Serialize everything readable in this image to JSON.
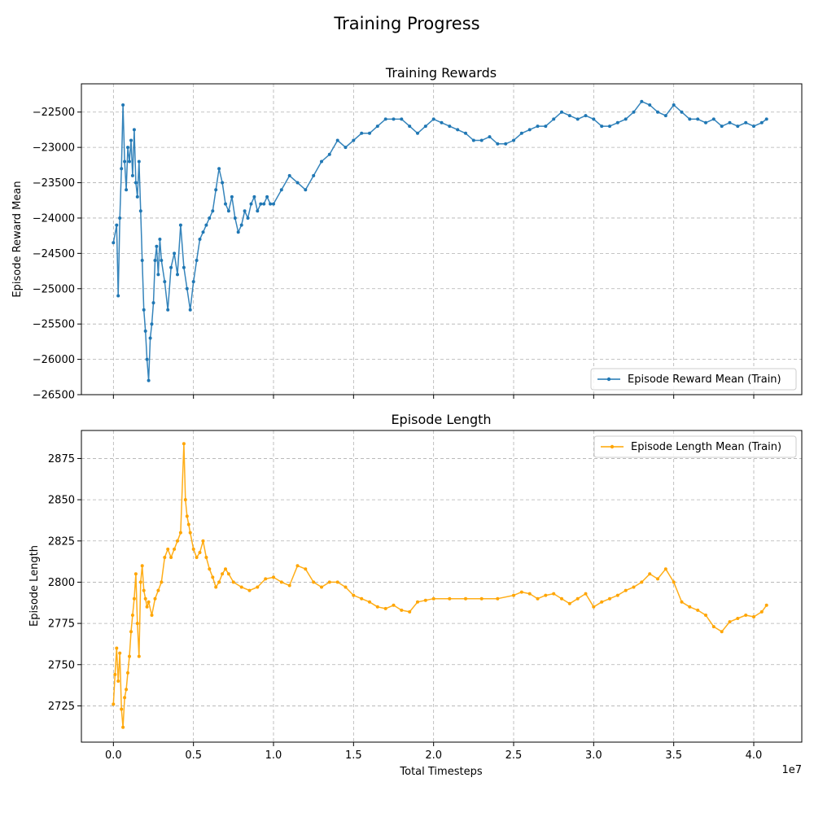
{
  "figure": {
    "suptitle": "Training Progress"
  },
  "chart_data": [
    {
      "type": "line",
      "title": "Training Rewards",
      "xlabel": "",
      "ylabel": "Episode Reward Mean",
      "xlim": [
        -2000000,
        43000000
      ],
      "ylim": [
        -26500,
        -22100
      ],
      "yticks": [
        -26500,
        -26000,
        -25500,
        -25000,
        -24500,
        -24000,
        -23500,
        -23000,
        -22500
      ],
      "ytick_labels": [
        "−26500",
        "−26000",
        "−25500",
        "−25000",
        "−24500",
        "−24000",
        "−23500",
        "−23000",
        "−22500"
      ],
      "xticks": [
        0,
        5000000,
        10000000,
        15000000,
        20000000,
        25000000,
        30000000,
        35000000,
        40000000
      ],
      "show_xtick_labels": false,
      "grid": true,
      "legend": {
        "placement": "lower-right",
        "entries": [
          "Episode Reward Mean (Train)"
        ]
      },
      "series": [
        {
          "name": "Episode Reward Mean (Train)",
          "color": "#1f77b4",
          "marker": "dot",
          "points": [
            [
              0,
              -24350
            ],
            [
              200000,
              -24100
            ],
            [
              300000,
              -25100
            ],
            [
              400000,
              -24000
            ],
            [
              500000,
              -23300
            ],
            [
              600000,
              -22400
            ],
            [
              700000,
              -23200
            ],
            [
              800000,
              -23600
            ],
            [
              900000,
              -23000
            ],
            [
              1000000,
              -23200
            ],
            [
              1100000,
              -22900
            ],
            [
              1200000,
              -23400
            ],
            [
              1300000,
              -22750
            ],
            [
              1400000,
              -23500
            ],
            [
              1500000,
              -23700
            ],
            [
              1600000,
              -23200
            ],
            [
              1700000,
              -23900
            ],
            [
              1800000,
              -24600
            ],
            [
              1900000,
              -25300
            ],
            [
              2000000,
              -25600
            ],
            [
              2100000,
              -26000
            ],
            [
              2200000,
              -26300
            ],
            [
              2300000,
              -25700
            ],
            [
              2400000,
              -25500
            ],
            [
              2500000,
              -25200
            ],
            [
              2600000,
              -24600
            ],
            [
              2700000,
              -24400
            ],
            [
              2800000,
              -24800
            ],
            [
              2900000,
              -24300
            ],
            [
              3000000,
              -24600
            ],
            [
              3200000,
              -24900
            ],
            [
              3400000,
              -25300
            ],
            [
              3600000,
              -24700
            ],
            [
              3800000,
              -24500
            ],
            [
              4000000,
              -24800
            ],
            [
              4200000,
              -24100
            ],
            [
              4400000,
              -24700
            ],
            [
              4600000,
              -25000
            ],
            [
              4800000,
              -25300
            ],
            [
              5000000,
              -24900
            ],
            [
              5200000,
              -24600
            ],
            [
              5400000,
              -24300
            ],
            [
              5600000,
              -24200
            ],
            [
              5800000,
              -24100
            ],
            [
              6000000,
              -24000
            ],
            [
              6200000,
              -23900
            ],
            [
              6400000,
              -23600
            ],
            [
              6600000,
              -23300
            ],
            [
              6800000,
              -23500
            ],
            [
              7000000,
              -23800
            ],
            [
              7200000,
              -23900
            ],
            [
              7400000,
              -23700
            ],
            [
              7600000,
              -24000
            ],
            [
              7800000,
              -24200
            ],
            [
              8000000,
              -24100
            ],
            [
              8200000,
              -23900
            ],
            [
              8400000,
              -24000
            ],
            [
              8600000,
              -23800
            ],
            [
              8800000,
              -23700
            ],
            [
              9000000,
              -23900
            ],
            [
              9200000,
              -23800
            ],
            [
              9400000,
              -23800
            ],
            [
              9600000,
              -23700
            ],
            [
              9800000,
              -23800
            ],
            [
              10000000,
              -23800
            ],
            [
              10500000,
              -23600
            ],
            [
              11000000,
              -23400
            ],
            [
              11500000,
              -23500
            ],
            [
              12000000,
              -23600
            ],
            [
              12500000,
              -23400
            ],
            [
              13000000,
              -23200
            ],
            [
              13500000,
              -23100
            ],
            [
              14000000,
              -22900
            ],
            [
              14500000,
              -23000
            ],
            [
              15000000,
              -22900
            ],
            [
              15500000,
              -22800
            ],
            [
              16000000,
              -22800
            ],
            [
              16500000,
              -22700
            ],
            [
              17000000,
              -22600
            ],
            [
              17500000,
              -22600
            ],
            [
              18000000,
              -22600
            ],
            [
              18500000,
              -22700
            ],
            [
              19000000,
              -22800
            ],
            [
              19500000,
              -22700
            ],
            [
              20000000,
              -22600
            ],
            [
              20500000,
              -22650
            ],
            [
              21000000,
              -22700
            ],
            [
              21500000,
              -22750
            ],
            [
              22000000,
              -22800
            ],
            [
              22500000,
              -22900
            ],
            [
              23000000,
              -22900
            ],
            [
              23500000,
              -22850
            ],
            [
              24000000,
              -22950
            ],
            [
              24500000,
              -22950
            ],
            [
              25000000,
              -22900
            ],
            [
              25500000,
              -22800
            ],
            [
              26000000,
              -22750
            ],
            [
              26500000,
              -22700
            ],
            [
              27000000,
              -22700
            ],
            [
              27500000,
              -22600
            ],
            [
              28000000,
              -22500
            ],
            [
              28500000,
              -22550
            ],
            [
              29000000,
              -22600
            ],
            [
              29500000,
              -22550
            ],
            [
              30000000,
              -22600
            ],
            [
              30500000,
              -22700
            ],
            [
              31000000,
              -22700
            ],
            [
              31500000,
              -22650
            ],
            [
              32000000,
              -22600
            ],
            [
              32500000,
              -22500
            ],
            [
              33000000,
              -22350
            ],
            [
              33500000,
              -22400
            ],
            [
              34000000,
              -22500
            ],
            [
              34500000,
              -22550
            ],
            [
              35000000,
              -22400
            ],
            [
              35500000,
              -22500
            ],
            [
              36000000,
              -22600
            ],
            [
              36500000,
              -22600
            ],
            [
              37000000,
              -22650
            ],
            [
              37500000,
              -22600
            ],
            [
              38000000,
              -22700
            ],
            [
              38500000,
              -22650
            ],
            [
              39000000,
              -22700
            ],
            [
              39500000,
              -22650
            ],
            [
              40000000,
              -22700
            ],
            [
              40500000,
              -22650
            ],
            [
              40800000,
              -22600
            ]
          ]
        }
      ]
    },
    {
      "type": "line",
      "title": "Episode Length",
      "xlabel": "Total Timesteps",
      "ylabel": "Episode Length",
      "x_offset_label": "1e7",
      "xlim": [
        -2000000,
        43000000
      ],
      "ylim": [
        2703,
        2892
      ],
      "yticks": [
        2725,
        2750,
        2775,
        2800,
        2825,
        2850,
        2875
      ],
      "ytick_labels": [
        "2725",
        "2750",
        "2775",
        "2800",
        "2825",
        "2850",
        "2875"
      ],
      "xticks": [
        0,
        5000000,
        10000000,
        15000000,
        20000000,
        25000000,
        30000000,
        35000000,
        40000000
      ],
      "xtick_labels": [
        "0.0",
        "0.5",
        "1.0",
        "1.5",
        "2.0",
        "2.5",
        "3.0",
        "3.5",
        "4.0"
      ],
      "show_xtick_labels": true,
      "grid": true,
      "legend": {
        "placement": "upper-right",
        "entries": [
          "Episode Length Mean (Train)"
        ]
      },
      "series": [
        {
          "name": "Episode Length Mean (Train)",
          "color": "#ffa500",
          "marker": "dot",
          "points": [
            [
              0,
              2726
            ],
            [
              100000,
              2744
            ],
            [
              200000,
              2760
            ],
            [
              300000,
              2740
            ],
            [
              400000,
              2757
            ],
            [
              500000,
              2723
            ],
            [
              600000,
              2712
            ],
            [
              700000,
              2730
            ],
            [
              800000,
              2735
            ],
            [
              900000,
              2745
            ],
            [
              1000000,
              2755
            ],
            [
              1100000,
              2770
            ],
            [
              1200000,
              2780
            ],
            [
              1300000,
              2790
            ],
            [
              1400000,
              2805
            ],
            [
              1500000,
              2775
            ],
            [
              1600000,
              2755
            ],
            [
              1700000,
              2800
            ],
            [
              1800000,
              2810
            ],
            [
              1900000,
              2795
            ],
            [
              2000000,
              2790
            ],
            [
              2100000,
              2785
            ],
            [
              2200000,
              2788
            ],
            [
              2400000,
              2780
            ],
            [
              2600000,
              2790
            ],
            [
              2800000,
              2795
            ],
            [
              3000000,
              2800
            ],
            [
              3200000,
              2815
            ],
            [
              3400000,
              2820
            ],
            [
              3600000,
              2815
            ],
            [
              3800000,
              2820
            ],
            [
              4000000,
              2825
            ],
            [
              4200000,
              2830
            ],
            [
              4400000,
              2884
            ],
            [
              4500000,
              2850
            ],
            [
              4600000,
              2840
            ],
            [
              4700000,
              2835
            ],
            [
              4800000,
              2830
            ],
            [
              5000000,
              2820
            ],
            [
              5200000,
              2815
            ],
            [
              5400000,
              2818
            ],
            [
              5600000,
              2825
            ],
            [
              5800000,
              2815
            ],
            [
              6000000,
              2808
            ],
            [
              6200000,
              2803
            ],
            [
              6400000,
              2797
            ],
            [
              6600000,
              2800
            ],
            [
              6800000,
              2805
            ],
            [
              7000000,
              2808
            ],
            [
              7200000,
              2805
            ],
            [
              7500000,
              2800
            ],
            [
              8000000,
              2797
            ],
            [
              8500000,
              2795
            ],
            [
              9000000,
              2797
            ],
            [
              9500000,
              2802
            ],
            [
              10000000,
              2803
            ],
            [
              10500000,
              2800
            ],
            [
              11000000,
              2798
            ],
            [
              11500000,
              2810
            ],
            [
              12000000,
              2808
            ],
            [
              12500000,
              2800
            ],
            [
              13000000,
              2797
            ],
            [
              13500000,
              2800
            ],
            [
              14000000,
              2800
            ],
            [
              14500000,
              2797
            ],
            [
              15000000,
              2792
            ],
            [
              15500000,
              2790
            ],
            [
              16000000,
              2788
            ],
            [
              16500000,
              2785
            ],
            [
              17000000,
              2784
            ],
            [
              17500000,
              2786
            ],
            [
              18000000,
              2783
            ],
            [
              18500000,
              2782
            ],
            [
              19000000,
              2788
            ],
            [
              19500000,
              2789
            ],
            [
              20000000,
              2790
            ],
            [
              21000000,
              2790
            ],
            [
              22000000,
              2790
            ],
            [
              23000000,
              2790
            ],
            [
              24000000,
              2790
            ],
            [
              25000000,
              2792
            ],
            [
              25500000,
              2794
            ],
            [
              26000000,
              2793
            ],
            [
              26500000,
              2790
            ],
            [
              27000000,
              2792
            ],
            [
              27500000,
              2793
            ],
            [
              28000000,
              2790
            ],
            [
              28500000,
              2787
            ],
            [
              29000000,
              2790
            ],
            [
              29500000,
              2793
            ],
            [
              30000000,
              2785
            ],
            [
              30500000,
              2788
            ],
            [
              31000000,
              2790
            ],
            [
              31500000,
              2792
            ],
            [
              32000000,
              2795
            ],
            [
              32500000,
              2797
            ],
            [
              33000000,
              2800
            ],
            [
              33500000,
              2805
            ],
            [
              34000000,
              2802
            ],
            [
              34500000,
              2808
            ],
            [
              35000000,
              2800
            ],
            [
              35500000,
              2788
            ],
            [
              36000000,
              2785
            ],
            [
              36500000,
              2783
            ],
            [
              37000000,
              2780
            ],
            [
              37500000,
              2773
            ],
            [
              38000000,
              2770
            ],
            [
              38500000,
              2776
            ],
            [
              39000000,
              2778
            ],
            [
              39500000,
              2780
            ],
            [
              40000000,
              2779
            ],
            [
              40500000,
              2782
            ],
            [
              40800000,
              2786
            ]
          ]
        }
      ]
    }
  ]
}
